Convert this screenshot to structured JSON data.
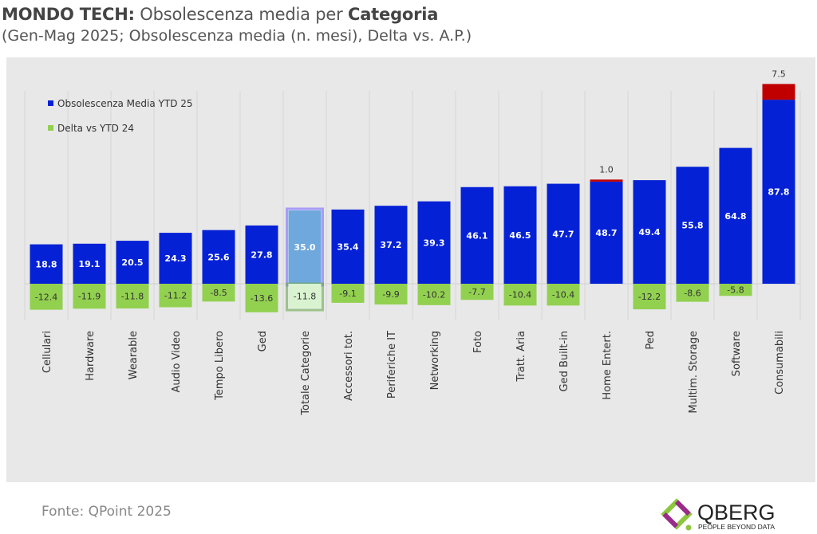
{
  "header": {
    "title_brand": "MONDO TECH:",
    "title_mid": " Obsolescenza media per ",
    "title_bold": "Categoria",
    "subtitle": "(Gen-Mag 2025; Obsolescenza media (n. mesi), Delta vs. A.P.)"
  },
  "footer": {
    "source": "Fonte: QPoint 2025",
    "logo_text": "QBERG",
    "logo_tagline": "PEOPLE BEYOND DATA"
  },
  "chart_data": {
    "type": "bar",
    "title": "",
    "categories": [
      "Cellulari",
      "Hardware",
      "Wearable",
      "Audio Video",
      "Tempo Libero",
      "Ged",
      "Totale Categorie",
      "Accessori tot.",
      "Periferiche IT",
      "Networking",
      "Foto",
      "Tratt. Aria",
      "Ged Built-in",
      "Home Entert.",
      "Ped",
      "Multim. Storage",
      "Software",
      "Consumabili"
    ],
    "series": [
      {
        "name": "Obsolescenza Media YTD 25",
        "color": "#0521d6",
        "values": [
          18.8,
          19.1,
          20.5,
          24.3,
          25.6,
          27.8,
          35.0,
          35.4,
          37.2,
          39.3,
          46.1,
          46.5,
          47.7,
          48.7,
          49.4,
          55.8,
          64.8,
          87.8
        ]
      },
      {
        "name": "Delta vs YTD 24",
        "color": "#92d050",
        "positive_color": "#c00000",
        "values": [
          -12.4,
          -11.9,
          -11.8,
          -11.2,
          -8.5,
          -13.6,
          -11.8,
          -9.1,
          -9.9,
          -10.2,
          -7.7,
          -10.4,
          -10.4,
          1.0,
          -12.2,
          -8.6,
          -5.8,
          7.5
        ]
      }
    ],
    "highlight": "Totale Categorie",
    "highlight_colors": {
      "bar": "#6fa8dc",
      "delta": "#d9f2d0"
    },
    "legend": "top-left",
    "grid": "vertical"
  }
}
